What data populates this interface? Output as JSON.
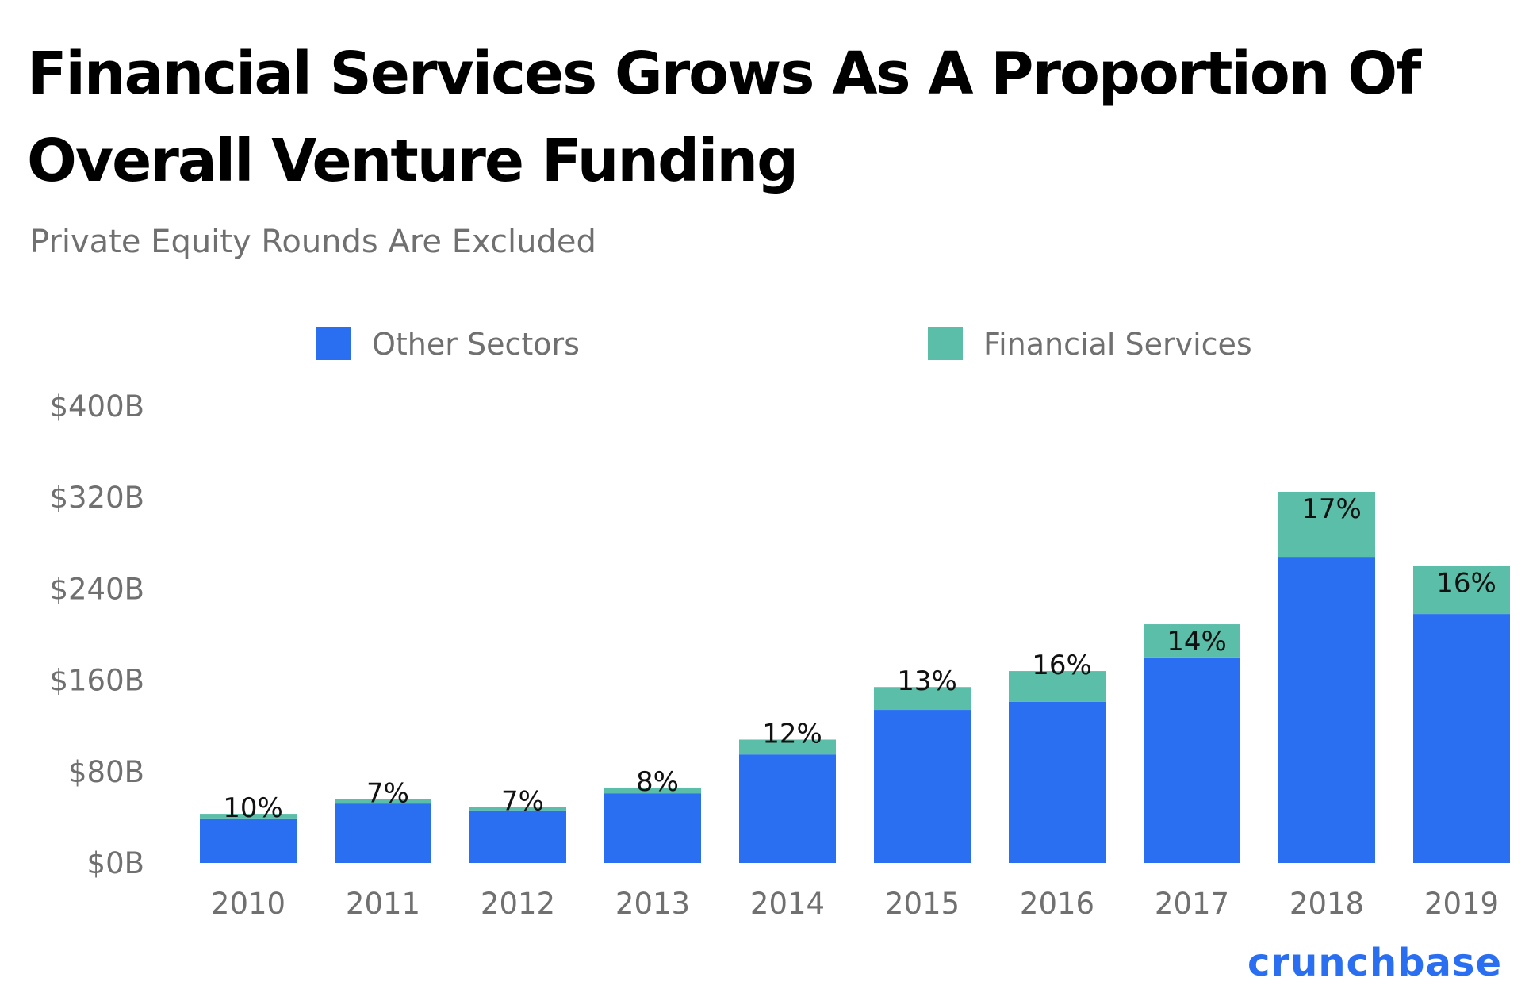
{
  "chart_data": {
    "type": "bar",
    "stacked": true,
    "title": "Financial Services Grows As A Proportion Of Overall Venture Funding",
    "subtitle": "Private Equity Rounds Are Excluded",
    "categories": [
      "2010",
      "2011",
      "2012",
      "2013",
      "2014",
      "2015",
      "2016",
      "2017",
      "2018",
      "2019"
    ],
    "series": [
      {
        "name": "Other Sectors",
        "color": "#2a6ff2",
        "values": [
          39,
          52,
          46,
          61,
          95,
          134,
          141,
          180,
          268,
          218
        ]
      },
      {
        "name": "Financial Services",
        "color": "#5bbea8",
        "values": [
          4,
          4,
          3,
          5,
          13,
          20,
          27,
          29,
          57,
          42
        ]
      }
    ],
    "data_labels": [
      "10%",
      "7%",
      "7%",
      "8%",
      "12%",
      "13%",
      "16%",
      "14%",
      "17%",
      "16%"
    ],
    "y_ticks": [
      "$0B",
      "$80B",
      "$160B",
      "$240B",
      "$320B",
      "$400B"
    ],
    "y_tick_values": [
      0,
      80,
      160,
      240,
      320,
      400
    ],
    "ylim": [
      0,
      400
    ],
    "grid": false,
    "legend_position": "top-center",
    "xlabel": "",
    "ylabel": ""
  },
  "brand": {
    "logo_text": "crunchbase"
  }
}
